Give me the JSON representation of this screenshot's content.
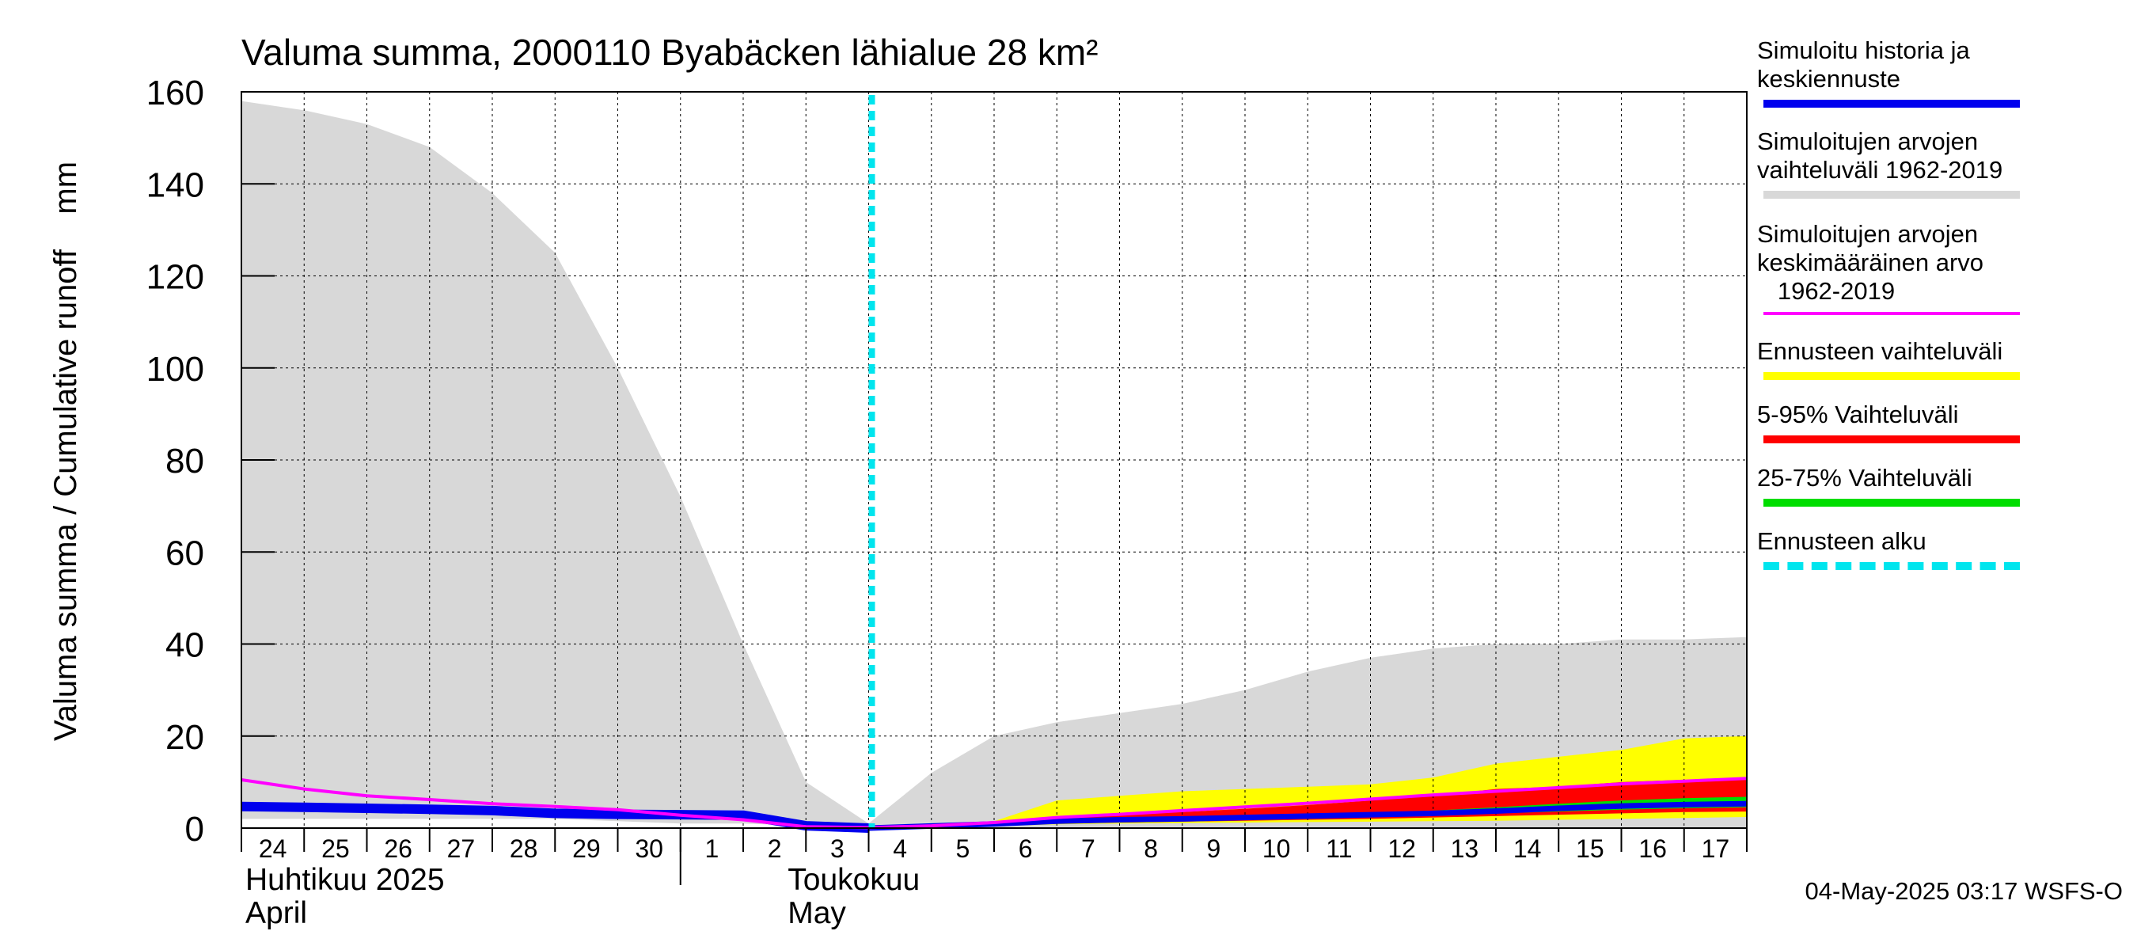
{
  "chart_data": {
    "type": "area",
    "title": "Valuma summa, 2000110 Byabäcken  lähialue 28 km²",
    "ylabel": "Valuma summa / Cumulative runoff    mm",
    "ylim": [
      0,
      160
    ],
    "yticks": [
      0,
      20,
      40,
      60,
      80,
      100,
      120,
      140,
      160
    ],
    "grid": true,
    "legend_position": "right",
    "x_days": [
      "24",
      "25",
      "26",
      "27",
      "28",
      "29",
      "30",
      "1",
      "2",
      "3",
      "4",
      "5",
      "6",
      "7",
      "8",
      "9",
      "10",
      "11",
      "12",
      "13",
      "14",
      "15",
      "16",
      "17"
    ],
    "month_labels": [
      {
        "fi": "Huhtikuu  2025",
        "en": "April"
      },
      {
        "fi": "Toukokuu",
        "en": "May"
      }
    ],
    "forecast_start": "2025-05-04",
    "series": {
      "range_1962_2019": {
        "x": [
          "2025-04-24",
          "2025-04-25",
          "2025-04-26",
          "2025-04-27",
          "2025-04-28",
          "2025-04-29",
          "2025-04-30",
          "2025-05-01",
          "2025-05-02",
          "2025-05-03",
          "2025-05-04",
          "2025-05-05",
          "2025-05-06",
          "2025-05-07",
          "2025-05-08",
          "2025-05-09",
          "2025-05-10",
          "2025-05-11",
          "2025-05-12",
          "2025-05-13",
          "2025-05-14",
          "2025-05-15",
          "2025-05-16",
          "2025-05-17",
          "2025-05-18"
        ],
        "upper": [
          158,
          156,
          153,
          148,
          138,
          125,
          100,
          72,
          40,
          10,
          1,
          12,
          20,
          23,
          25,
          27,
          30,
          34,
          37,
          39,
          40,
          40,
          41,
          41,
          41.5
        ],
        "lower": [
          2,
          2,
          2,
          2,
          2,
          2,
          1.5,
          1,
          1,
          0.5,
          0,
          0,
          0,
          0,
          0,
          0,
          0,
          0,
          0,
          0,
          0,
          0,
          0,
          0,
          0
        ]
      },
      "mean_1962_2019": {
        "x": [
          "2025-04-24",
          "2025-04-25",
          "2025-04-26",
          "2025-04-27",
          "2025-04-28",
          "2025-04-29",
          "2025-04-30",
          "2025-05-01",
          "2025-05-02",
          "2025-05-03",
          "2025-05-04",
          "2025-05-05",
          "2025-05-06",
          "2025-05-07",
          "2025-05-08",
          "2025-05-09",
          "2025-05-10",
          "2025-05-11",
          "2025-05-12",
          "2025-05-13",
          "2025-05-14",
          "2025-05-15",
          "2025-05-16",
          "2025-05-17",
          "2025-05-18"
        ],
        "values": [
          10.5,
          8.5,
          7,
          6.2,
          5.3,
          4.7,
          4,
          2.8,
          1.8,
          0.3,
          0.1,
          0.5,
          1.2,
          2.3,
          3,
          3.8,
          4.6,
          5.4,
          6.3,
          7.2,
          8,
          8.8,
          9.6,
          10.2,
          10.8
        ]
      },
      "simulated_history": {
        "x": [
          "2025-04-24",
          "2025-04-25",
          "2025-04-26",
          "2025-04-27",
          "2025-04-28",
          "2025-04-29",
          "2025-04-30",
          "2025-05-01",
          "2025-05-02",
          "2025-05-03",
          "2025-05-04"
        ],
        "values": [
          4.7,
          4.5,
          4.3,
          4.1,
          3.8,
          3.2,
          3,
          2.9,
          2.8,
          0.5,
          0
        ]
      },
      "forecast_x": [
        "2025-05-04",
        "2025-05-05",
        "2025-05-06",
        "2025-05-07",
        "2025-05-08",
        "2025-05-09",
        "2025-05-10",
        "2025-05-11",
        "2025-05-12",
        "2025-05-13",
        "2025-05-14",
        "2025-05-15",
        "2025-05-16",
        "2025-05-17",
        "2025-05-18"
      ],
      "forecast_range": {
        "upper": [
          0,
          0.8,
          1.5,
          6,
          7,
          8,
          8.5,
          9,
          9.5,
          11,
          14,
          15.5,
          17,
          19.5,
          20
        ],
        "lower": [
          0,
          0.2,
          0.4,
          0.8,
          1,
          1.1,
          1.2,
          1.3,
          1.4,
          1.5,
          1.6,
          1.8,
          2,
          2.2,
          2.4
        ]
      },
      "forecast_5_95": {
        "upper": [
          0,
          0.6,
          1.2,
          2.5,
          3,
          3.5,
          4.2,
          5,
          6,
          7,
          8.5,
          9,
          10,
          10.5,
          10.5
        ],
        "lower": [
          0,
          0.3,
          0.6,
          1,
          1.2,
          1.4,
          1.6,
          1.8,
          2,
          2.3,
          2.6,
          2.9,
          3.2,
          3.5,
          3.6
        ]
      },
      "forecast_25_75": {
        "upper": [
          0,
          0.5,
          1,
          1.8,
          2,
          2.3,
          2.6,
          3,
          3.3,
          3.8,
          4.5,
          5.3,
          6,
          6.5,
          6.8
        ],
        "lower": [
          0,
          0.4,
          0.8,
          1.3,
          1.5,
          1.7,
          2,
          2.2,
          2.5,
          2.8,
          3.2,
          3.6,
          4,
          4.3,
          4.5
        ]
      },
      "forecast_median": {
        "values": [
          0,
          0.45,
          0.9,
          1.5,
          1.8,
          2,
          2.3,
          2.6,
          2.9,
          3.2,
          3.7,
          4.3,
          4.8,
          5.1,
          5.3
        ]
      }
    },
    "colors": {
      "range_1962_2019": "#d8d8d8",
      "mean_1962_2019": "#ff00ff",
      "simulated_history": "#0000ee",
      "forecast_range": "#ffff00",
      "forecast_5_95": "#ff0000",
      "forecast_25_75": "#00dd00",
      "forecast_start": "#00e5ee"
    }
  },
  "legend": [
    {
      "text": "Simuloitu historia ja\nkeskiennuste",
      "color": "#0000ee",
      "style": "solid"
    },
    {
      "text": "Simuloitujen arvojen\nvaihteluväli 1962-2019",
      "color": "#d8d8d8",
      "style": "solid"
    },
    {
      "text": "Simuloitujen arvojen\nkeskimääräinen arvo\n   1962-2019",
      "color": "#ff00ff",
      "style": "thin"
    },
    {
      "text": "Ennusteen vaihteluväli",
      "color": "#ffff00",
      "style": "solid"
    },
    {
      "text": "5-95% Vaihteluväli",
      "color": "#ff0000",
      "style": "solid"
    },
    {
      "text": "25-75% Vaihteluväli",
      "color": "#00dd00",
      "style": "solid"
    },
    {
      "text": "Ennusteen alku",
      "color": "#00e5ee",
      "style": "dashed"
    }
  ],
  "footer": "04-May-2025 03:17 WSFS-O"
}
